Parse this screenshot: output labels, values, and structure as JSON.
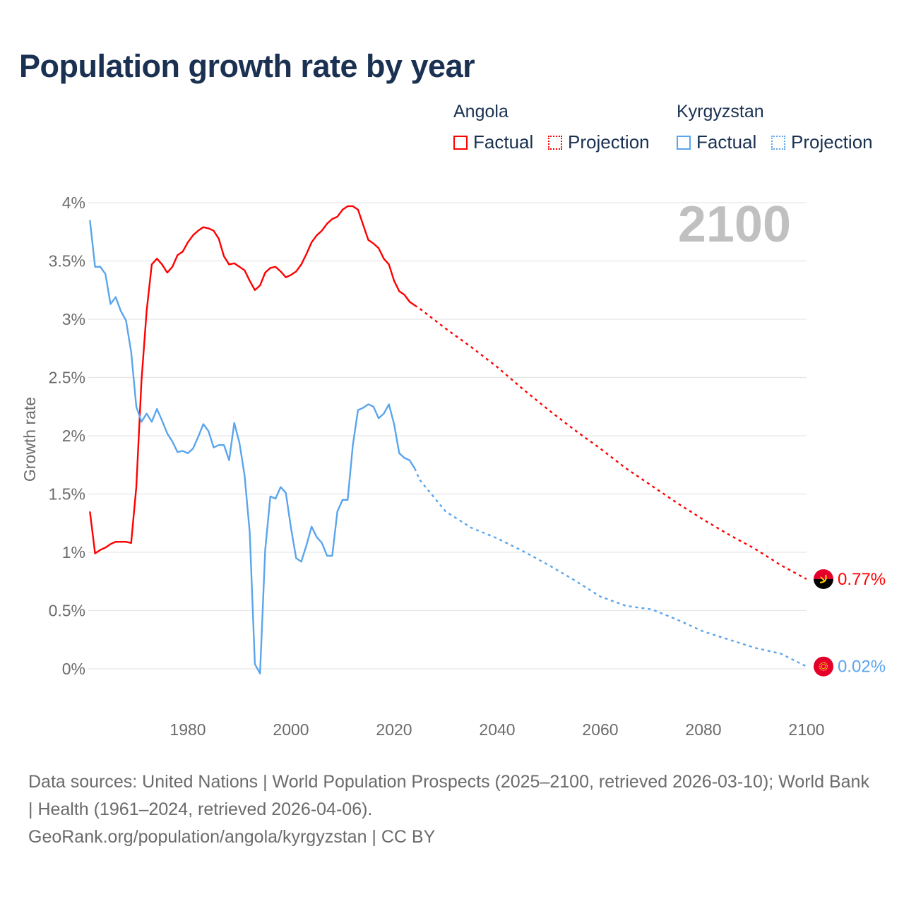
{
  "chart_data": {
    "type": "line",
    "title": "Population growth rate by year",
    "ylabel": "Growth rate",
    "xlabel": "",
    "xlim": [
      1961,
      2100
    ],
    "ylim": [
      -0.2,
      4.1
    ],
    "grid": true,
    "x_ticks": [
      "1980",
      "2000",
      "2020",
      "2040",
      "2060",
      "2080",
      "2100"
    ],
    "x_tick_values": [
      1980,
      2000,
      2020,
      2040,
      2060,
      2080,
      2100
    ],
    "y_ticks": [
      "0%",
      "0.5%",
      "1%",
      "1.5%",
      "2%",
      "2.5%",
      "3%",
      "3.5%",
      "4%"
    ],
    "y_tick_values": [
      0,
      0.5,
      1,
      1.5,
      2,
      2.5,
      3,
      3.5,
      4
    ],
    "year_watermark": "2100",
    "legend_placement": "top-right",
    "series": [
      {
        "name": "Angola",
        "color": "#ff0000",
        "flag": "angola-flag-icon",
        "end_label": "0.77%",
        "factual_label": "Factual",
        "projection_label": "Projection",
        "factual_start_year": 1961,
        "factual": [
          1.35,
          0.99,
          1.02,
          1.04,
          1.07,
          1.09,
          1.09,
          1.09,
          1.08,
          1.56,
          2.47,
          3.07,
          3.47,
          3.52,
          3.47,
          3.4,
          3.45,
          3.55,
          3.58,
          3.66,
          3.72,
          3.76,
          3.79,
          3.78,
          3.76,
          3.69,
          3.54,
          3.47,
          3.48,
          3.45,
          3.42,
          3.33,
          3.25,
          3.29,
          3.4,
          3.44,
          3.45,
          3.41,
          3.36,
          3.38,
          3.41,
          3.47,
          3.56,
          3.66,
          3.72,
          3.76,
          3.82,
          3.86,
          3.88,
          3.94,
          3.97,
          3.97,
          3.94,
          3.81,
          3.68,
          3.65,
          3.61,
          3.52,
          3.47,
          3.33,
          3.24,
          3.21,
          3.15,
          3.12
        ],
        "projection_years": [
          2025,
          2030,
          2035,
          2040,
          2045,
          2050,
          2055,
          2060,
          2065,
          2070,
          2075,
          2080,
          2085,
          2090,
          2095,
          2100
        ],
        "projection": [
          3.09,
          2.92,
          2.76,
          2.59,
          2.4,
          2.22,
          2.05,
          1.89,
          1.72,
          1.57,
          1.42,
          1.28,
          1.15,
          1.03,
          0.89,
          0.77
        ]
      },
      {
        "name": "Kyrgyzstan",
        "color": "#5aa5ec",
        "flag": "kyrgyzstan-flag-icon",
        "end_label": "0.02%",
        "factual_label": "Factual",
        "projection_label": "Projection",
        "factual_start_year": 1961,
        "factual": [
          3.85,
          3.45,
          3.45,
          3.39,
          3.13,
          3.19,
          3.07,
          2.99,
          2.72,
          2.25,
          2.12,
          2.19,
          2.12,
          2.23,
          2.13,
          2.02,
          1.95,
          1.86,
          1.87,
          1.85,
          1.89,
          1.99,
          2.1,
          2.04,
          1.9,
          1.92,
          1.92,
          1.79,
          2.11,
          1.94,
          1.66,
          1.17,
          0.04,
          -0.04,
          1.02,
          1.48,
          1.46,
          1.56,
          1.51,
          1.21,
          0.95,
          0.92,
          1.06,
          1.22,
          1.13,
          1.08,
          0.97,
          0.97,
          1.35,
          1.45,
          1.45,
          1.92,
          2.22,
          2.24,
          2.27,
          2.25,
          2.15,
          2.19,
          2.27,
          2.1,
          1.85,
          1.81,
          1.79,
          1.72
        ],
        "projection_years": [
          2025,
          2030,
          2035,
          2040,
          2045,
          2050,
          2055,
          2060,
          2065,
          2070,
          2075,
          2080,
          2085,
          2090,
          2095,
          2100
        ],
        "projection": [
          1.62,
          1.35,
          1.21,
          1.12,
          1.01,
          0.89,
          0.76,
          0.62,
          0.54,
          0.51,
          0.42,
          0.32,
          0.25,
          0.18,
          0.13,
          0.02
        ]
      }
    ]
  },
  "footer": {
    "sources": "Data sources: United Nations | World Population Prospects (2025–2100, retrieved 2026-03-10); World Bank | Health (1961–2024, retrieved 2026-04-06).",
    "link": "GeoRank.org/population/angola/kyrgyzstan | CC BY"
  }
}
